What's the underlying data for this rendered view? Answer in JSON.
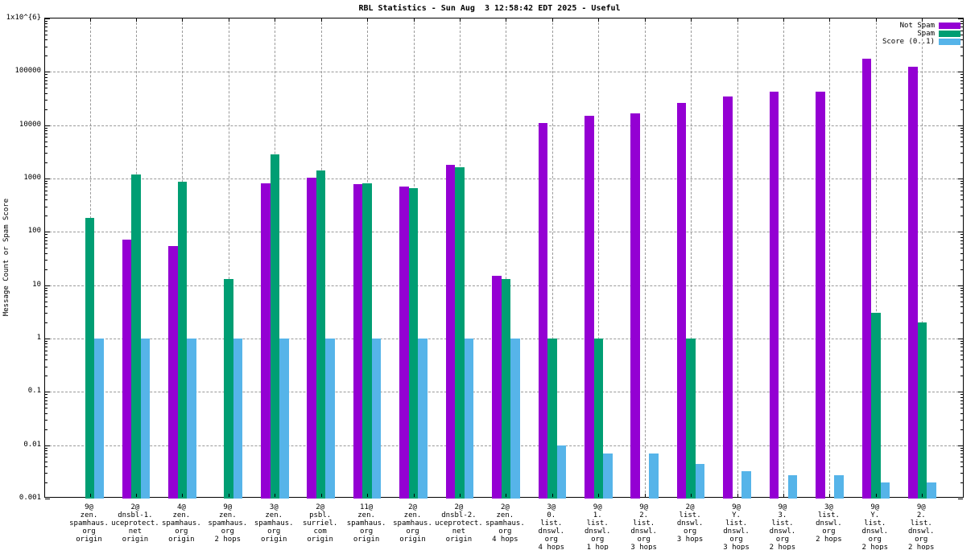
{
  "title": "RBL Statistics - Sun Aug  3 12:58:42 EDT 2025 - Useful",
  "y_axis": {
    "label": "Message Count or Spam Score",
    "tick_labels": [
      "1x10^{6}",
      "100000",
      "10000",
      "1000",
      "100",
      "10",
      "1",
      "0.1",
      "0.01",
      "0.001"
    ],
    "tick_values": [
      1000000,
      100000,
      10000,
      1000,
      100,
      10,
      1,
      0.1,
      0.01,
      0.001
    ]
  },
  "legend": {
    "entries": [
      {
        "label": "Not Spam",
        "color": "#9400d3"
      },
      {
        "label": "Spam",
        "color": "#009e73"
      },
      {
        "label": "Score (0..1)",
        "color": "#56b4e9"
      }
    ],
    "position": "top-right"
  },
  "colors": {
    "not_spam": "#9400d3",
    "spam": "#009e73",
    "score": "#56b4e9",
    "grid": "#9a9a9a",
    "border": "#000000",
    "background": "#ffffff"
  },
  "chart_data": {
    "type": "bar",
    "title": "RBL Statistics - Sun Aug  3 12:58:42 EDT 2025 - Useful",
    "xlabel": "",
    "ylabel": "Message Count or Spam Score",
    "y_scale": "log",
    "ylim": [
      0.001,
      1000000
    ],
    "grid": true,
    "legend_position": "top-right",
    "categories": [
      "9@ zen.spamhaus.org origin",
      "2@ dnsbl-1.uceprotect.net origin",
      "4@ zen.spamhaus.org origin",
      "9@ zen.spamhaus.org 2 hops",
      "3@ zen.spamhaus.org origin",
      "2@ psbl.surriel.com origin",
      "11@ zen.spamhaus.org origin",
      "2@ zen.spamhaus.org origin",
      "2@ dnsbl-2.uceprotect.net origin",
      "2@ zen.spamhaus.org 4 hops",
      "3@ 0.list.dnswl.org 4 hops",
      "9@ 1.list.dnswl.org 1 hop",
      "9@ 2.list.dnswl.org 3 hops",
      "2@ list.dnswl.org 3 hops",
      "9@ Y.list.dnswl.org 3 hops",
      "9@ 3.list.dnswl.org 2 hops",
      "3@ list.dnswl.org 2 hops",
      "9@ Y.list.dnswl.org 2 hops",
      "9@ 2.list.dnswl.org 2 hops"
    ],
    "categories_lines": [
      [
        "9@",
        "zen.",
        "spamhaus.",
        "org",
        "origin"
      ],
      [
        "2@",
        "dnsbl-1.",
        "uceprotect.",
        "net",
        "origin"
      ],
      [
        "4@",
        "zen.",
        "spamhaus.",
        "org",
        "origin"
      ],
      [
        "9@",
        "zen.",
        "spamhaus.",
        "org",
        "2 hops"
      ],
      [
        "3@",
        "zen.",
        "spamhaus.",
        "org",
        "origin"
      ],
      [
        "2@",
        "psbl.",
        "surriel.",
        "com",
        "origin"
      ],
      [
        "11@",
        "zen.",
        "spamhaus.",
        "org",
        "origin"
      ],
      [
        "2@",
        "zen.",
        "spamhaus.",
        "org",
        "origin"
      ],
      [
        "2@",
        "dnsbl-2.",
        "uceprotect.",
        "net",
        "origin"
      ],
      [
        "2@",
        "zen.",
        "spamhaus.",
        "org",
        "4 hops"
      ],
      [
        "3@",
        "0.",
        "list.",
        "dnswl.",
        "org",
        "4 hops"
      ],
      [
        "9@",
        "1.",
        "list.",
        "dnswl.",
        "org",
        "1 hop"
      ],
      [
        "9@",
        "2.",
        "list.",
        "dnswl.",
        "org",
        "3 hops"
      ],
      [
        "2@",
        "list.",
        "dnswl.",
        "org",
        "3 hops"
      ],
      [
        "9@",
        "Y.",
        "list.",
        "dnswl.",
        "org",
        "3 hops"
      ],
      [
        "9@",
        "3.",
        "list.",
        "dnswl.",
        "org",
        "2 hops"
      ],
      [
        "3@",
        "list.",
        "dnswl.",
        "org",
        "2 hops"
      ],
      [
        "9@",
        "Y.",
        "list.",
        "dnswl.",
        "org",
        "2 hops"
      ],
      [
        "9@",
        "2.",
        "list.",
        "dnswl.",
        "org",
        "2 hops"
      ]
    ],
    "series": [
      {
        "name": "Not Spam",
        "color": "#9400d3",
        "values": [
          null,
          72,
          55,
          null,
          810,
          1050,
          790,
          700,
          1800,
          15,
          11000,
          15000,
          16500,
          26000,
          34000,
          42000,
          42000,
          175000,
          123000
        ]
      },
      {
        "name": "Spam",
        "color": "#009e73",
        "values": [
          180,
          1200,
          860,
          13,
          2800,
          1400,
          810,
          650,
          1600,
          13,
          1,
          1,
          null,
          1,
          null,
          null,
          null,
          3,
          2
        ]
      },
      {
        "name": "Score (0..1)",
        "color": "#56b4e9",
        "values": [
          1,
          1,
          1,
          1,
          1,
          1,
          1,
          1,
          1,
          1,
          0.01,
          0.007,
          0.007,
          0.0045,
          0.0033,
          0.0027,
          0.0027,
          0.002,
          0.002
        ]
      }
    ]
  }
}
